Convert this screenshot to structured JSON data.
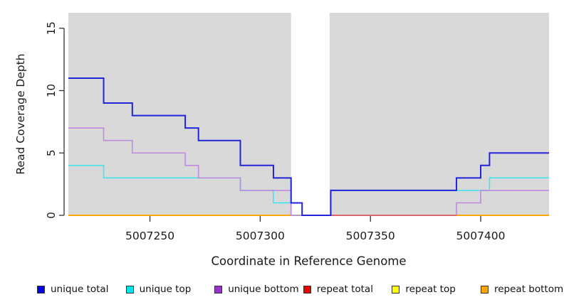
{
  "chart_data": {
    "type": "line",
    "subtype": "step",
    "title": "",
    "xlabel": "Coordinate in Reference Genome",
    "ylabel": "Read Coverage Depth",
    "xlim": [
      5007213,
      5007431
    ],
    "ylim": [
      0,
      16.25
    ],
    "x_tick_values": [
      5007250,
      5007300,
      5007350,
      5007400
    ],
    "y_tick_values": [
      0,
      5,
      10,
      15
    ],
    "grid": false,
    "legend_position": "bottom",
    "plot_bg_color": "#d9d9d9",
    "axis_color": "#333333",
    "text_color": "#1a1a1a",
    "gap_region": {
      "from": 5007314,
      "to": 5007331.5,
      "color": "#ffffff"
    },
    "red_visible_span": [
      5007332,
      5007389
    ],
    "series": [
      {
        "name": "unique total",
        "key": "unique_total",
        "color": "#2323d9",
        "legend_color": "#0000ee",
        "width": 2,
        "points": [
          [
            5007213,
            11
          ],
          [
            5007229,
            9
          ],
          [
            5007242,
            8
          ],
          [
            5007266,
            7
          ],
          [
            5007272,
            6
          ],
          [
            5007291,
            4
          ],
          [
            5007306,
            3
          ],
          [
            5007314,
            1
          ],
          [
            5007319,
            0
          ],
          [
            5007332,
            2
          ],
          [
            5007389,
            3
          ],
          [
            5007400,
            4
          ],
          [
            5007404,
            5
          ],
          [
            5007431,
            5
          ]
        ]
      },
      {
        "name": "unique top",
        "key": "unique_top",
        "color": "#48e2ec",
        "legend_color": "#00e5ee",
        "width": 1.6,
        "points": [
          [
            5007213,
            4
          ],
          [
            5007229,
            3
          ],
          [
            5007291,
            2
          ],
          [
            5007306,
            1
          ],
          [
            5007314,
            0
          ],
          [
            5007332,
            2
          ],
          [
            5007404,
            3
          ],
          [
            5007431,
            3
          ]
        ]
      },
      {
        "name": "unique bottom",
        "key": "unique_bottom",
        "color": "#bd8ade",
        "legend_color": "#9932cc",
        "width": 1.6,
        "points": [
          [
            5007213,
            7
          ],
          [
            5007229,
            6
          ],
          [
            5007242,
            5
          ],
          [
            5007266,
            4
          ],
          [
            5007272,
            3
          ],
          [
            5007291,
            2
          ],
          [
            5007314,
            0
          ],
          [
            5007389,
            1
          ],
          [
            5007400,
            2
          ],
          [
            5007431,
            2
          ]
        ]
      },
      {
        "name": "repeat total",
        "key": "repeat_total",
        "color": "#d8596b",
        "legend_color": "#ee0000",
        "width": 1.5,
        "points": [
          [
            5007213,
            0
          ],
          [
            5007431,
            0
          ]
        ]
      },
      {
        "name": "repeat top",
        "key": "repeat_top",
        "color": "#ffff00",
        "legend_color": "#ffff00",
        "width": 1.4,
        "points": [
          [
            5007213,
            0
          ],
          [
            5007431,
            0
          ]
        ]
      },
      {
        "name": "repeat bottom",
        "key": "repeat_bottom",
        "color": "#ffa500",
        "legend_color": "#ffa500",
        "width": 2,
        "points": [
          [
            5007213,
            0
          ],
          [
            5007431,
            0
          ]
        ]
      }
    ]
  }
}
